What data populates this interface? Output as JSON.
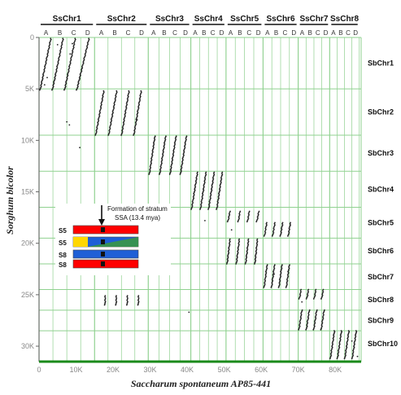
{
  "chart_data": {
    "type": "scatter",
    "title": "",
    "xlabel": "Saccharum spontaneum AP85-441",
    "ylabel": "Sorghum bicolor",
    "xlim": [
      0,
      87000
    ],
    "ylim": [
      0,
      31500
    ],
    "grid": true,
    "x_ticks": [
      0,
      10000,
      20000,
      30000,
      40000,
      50000,
      60000,
      70000,
      80000
    ],
    "x_tick_labels": [
      "0",
      "10K",
      "20K",
      "30K",
      "40K",
      "50K",
      "60K",
      "70K",
      "80K"
    ],
    "y_ticks": [
      0,
      5000,
      10000,
      15000,
      20000,
      25000,
      30000
    ],
    "y_tick_labels": [
      "0",
      "5K",
      "10K",
      "15K",
      "20K",
      "25K",
      "30K"
    ],
    "top_groups": [
      {
        "label": "SsChr1",
        "start": 0,
        "end": 15000
      },
      {
        "label": "SsChr2",
        "start": 15000,
        "end": 29500
      },
      {
        "label": "SsChr3",
        "start": 29500,
        "end": 41000
      },
      {
        "label": "SsChr4",
        "start": 41000,
        "end": 50500
      },
      {
        "label": "SsChr5",
        "start": 50500,
        "end": 60500
      },
      {
        "label": "SsChr6",
        "start": 60500,
        "end": 70000
      },
      {
        "label": "SsChr7",
        "start": 70000,
        "end": 78500
      },
      {
        "label": "SsChr8",
        "start": 78500,
        "end": 86500
      }
    ],
    "subgenome_labels": [
      "A",
      "B",
      "C",
      "D"
    ],
    "right_groups": [
      {
        "label": "SbChr1",
        "start": 0,
        "end": 5000
      },
      {
        "label": "SbChr2",
        "start": 5000,
        "end": 9500
      },
      {
        "label": "SbChr3",
        "start": 9500,
        "end": 13000
      },
      {
        "label": "SbChr4",
        "start": 13000,
        "end": 16500
      },
      {
        "label": "SbChr5",
        "start": 16500,
        "end": 19500
      },
      {
        "label": "SbChr6",
        "start": 19500,
        "end": 22000
      },
      {
        "label": "SbChr7",
        "start": 22000,
        "end": 24500
      },
      {
        "label": "SbChr8",
        "start": 24500,
        "end": 26500
      },
      {
        "label": "SbChr9",
        "start": 26500,
        "end": 28500
      },
      {
        "label": "SbChr10",
        "start": 28500,
        "end": 31000
      }
    ],
    "segments": [
      {
        "x1": 300,
        "y1": 5100,
        "x2": 3200,
        "y2": 100
      },
      {
        "x1": 3600,
        "y1": 5100,
        "x2": 6500,
        "y2": 100
      },
      {
        "x1": 6900,
        "y1": 5100,
        "x2": 9800,
        "y2": 100
      },
      {
        "x1": 10200,
        "y1": 5100,
        "x2": 13500,
        "y2": 100
      },
      {
        "x1": 15300,
        "y1": 9500,
        "x2": 17500,
        "y2": 5200
      },
      {
        "x1": 18800,
        "y1": 9500,
        "x2": 21000,
        "y2": 5200
      },
      {
        "x1": 22300,
        "y1": 9500,
        "x2": 24300,
        "y2": 5200
      },
      {
        "x1": 25600,
        "y1": 9500,
        "x2": 27600,
        "y2": 5200
      },
      {
        "x1": 29800,
        "y1": 13300,
        "x2": 31300,
        "y2": 9600
      },
      {
        "x1": 32600,
        "y1": 13300,
        "x2": 34200,
        "y2": 9600
      },
      {
        "x1": 35400,
        "y1": 13300,
        "x2": 37000,
        "y2": 9600
      },
      {
        "x1": 38200,
        "y1": 13300,
        "x2": 39800,
        "y2": 9600
      },
      {
        "x1": 41200,
        "y1": 16700,
        "x2": 42800,
        "y2": 13100
      },
      {
        "x1": 43600,
        "y1": 16700,
        "x2": 45100,
        "y2": 13100
      },
      {
        "x1": 45800,
        "y1": 16700,
        "x2": 47300,
        "y2": 13100
      },
      {
        "x1": 48000,
        "y1": 16700,
        "x2": 49500,
        "y2": 13100
      },
      {
        "x1": 51000,
        "y1": 17900,
        "x2": 51600,
        "y2": 16900
      },
      {
        "x1": 53800,
        "y1": 17900,
        "x2": 54300,
        "y2": 16900
      },
      {
        "x1": 56300,
        "y1": 17900,
        "x2": 56800,
        "y2": 16900
      },
      {
        "x1": 58800,
        "y1": 17900,
        "x2": 59400,
        "y2": 16900
      },
      {
        "x1": 50800,
        "y1": 22000,
        "x2": 51600,
        "y2": 19600
      },
      {
        "x1": 53300,
        "y1": 22000,
        "x2": 54100,
        "y2": 19600
      },
      {
        "x1": 55800,
        "y1": 22000,
        "x2": 56600,
        "y2": 19600
      },
      {
        "x1": 58300,
        "y1": 22000,
        "x2": 59000,
        "y2": 19600
      },
      {
        "x1": 60900,
        "y1": 19300,
        "x2": 61500,
        "y2": 18000
      },
      {
        "x1": 63100,
        "y1": 19300,
        "x2": 63700,
        "y2": 18000
      },
      {
        "x1": 65200,
        "y1": 19300,
        "x2": 65800,
        "y2": 18000
      },
      {
        "x1": 67300,
        "y1": 19300,
        "x2": 67900,
        "y2": 18000
      },
      {
        "x1": 60800,
        "y1": 24300,
        "x2": 61600,
        "y2": 22100
      },
      {
        "x1": 62800,
        "y1": 24300,
        "x2": 63600,
        "y2": 22100
      },
      {
        "x1": 64800,
        "y1": 24300,
        "x2": 65600,
        "y2": 22100
      },
      {
        "x1": 66800,
        "y1": 24300,
        "x2": 67600,
        "y2": 22100
      },
      {
        "x1": 70300,
        "y1": 25400,
        "x2": 70800,
        "y2": 24500
      },
      {
        "x1": 72300,
        "y1": 25400,
        "x2": 72800,
        "y2": 24500
      },
      {
        "x1": 74300,
        "y1": 25400,
        "x2": 74800,
        "y2": 24500
      },
      {
        "x1": 76300,
        "y1": 25400,
        "x2": 76800,
        "y2": 24500
      },
      {
        "x1": 70200,
        "y1": 28400,
        "x2": 71000,
        "y2": 26500
      },
      {
        "x1": 72200,
        "y1": 28400,
        "x2": 73000,
        "y2": 26500
      },
      {
        "x1": 74200,
        "y1": 28400,
        "x2": 75000,
        "y2": 26500
      },
      {
        "x1": 76200,
        "y1": 28400,
        "x2": 77000,
        "y2": 26500
      },
      {
        "x1": 78700,
        "y1": 31200,
        "x2": 79800,
        "y2": 28500
      },
      {
        "x1": 80600,
        "y1": 31200,
        "x2": 81700,
        "y2": 28500
      },
      {
        "x1": 82600,
        "y1": 31200,
        "x2": 83700,
        "y2": 28500
      },
      {
        "x1": 84600,
        "y1": 31200,
        "x2": 85700,
        "y2": 28500
      },
      {
        "x1": 17800,
        "y1": 26000,
        "x2": 17900,
        "y2": 25100
      },
      {
        "x1": 20800,
        "y1": 26000,
        "x2": 20900,
        "y2": 25100
      },
      {
        "x1": 23800,
        "y1": 26000,
        "x2": 23900,
        "y2": 25100
      },
      {
        "x1": 26800,
        "y1": 26000,
        "x2": 26900,
        "y2": 25100
      }
    ],
    "stray_points": [
      {
        "x": 1500,
        "y": 4600
      },
      {
        "x": 2200,
        "y": 3900
      },
      {
        "x": 5000,
        "y": 700
      },
      {
        "x": 8400,
        "y": 1600
      },
      {
        "x": 9000,
        "y": 600
      },
      {
        "x": 11600,
        "y": 3000
      },
      {
        "x": 7500,
        "y": 8200
      },
      {
        "x": 8200,
        "y": 8500
      },
      {
        "x": 11000,
        "y": 10700
      },
      {
        "x": 26500,
        "y": 8000
      },
      {
        "x": 44800,
        "y": 17800
      },
      {
        "x": 52000,
        "y": 18700
      },
      {
        "x": 63500,
        "y": 23000
      },
      {
        "x": 71000,
        "y": 25700
      },
      {
        "x": 84500,
        "y": 29500
      },
      {
        "x": 40500,
        "y": 26700
      },
      {
        "x": 86000,
        "y": 31000
      }
    ],
    "inset": {
      "annotation_lines": [
        "Formation of stratum",
        "SSA (13.4 mya)"
      ],
      "rows": [
        {
          "label": "S5",
          "colors": [
            "#ff0000"
          ]
        },
        {
          "label": "S5",
          "colors": [
            "#ffd700",
            "#1f5fd6",
            "#3c9a3c"
          ]
        },
        {
          "label": "S8",
          "colors": [
            "#1f5fd6"
          ]
        },
        {
          "label": "S8",
          "colors": [
            "#ff0000"
          ]
        }
      ]
    }
  },
  "colors": {
    "grid": "#8fd18f",
    "dots": "#222222",
    "axis_text": "#888888",
    "bottom_line": "#1a8a1a"
  }
}
